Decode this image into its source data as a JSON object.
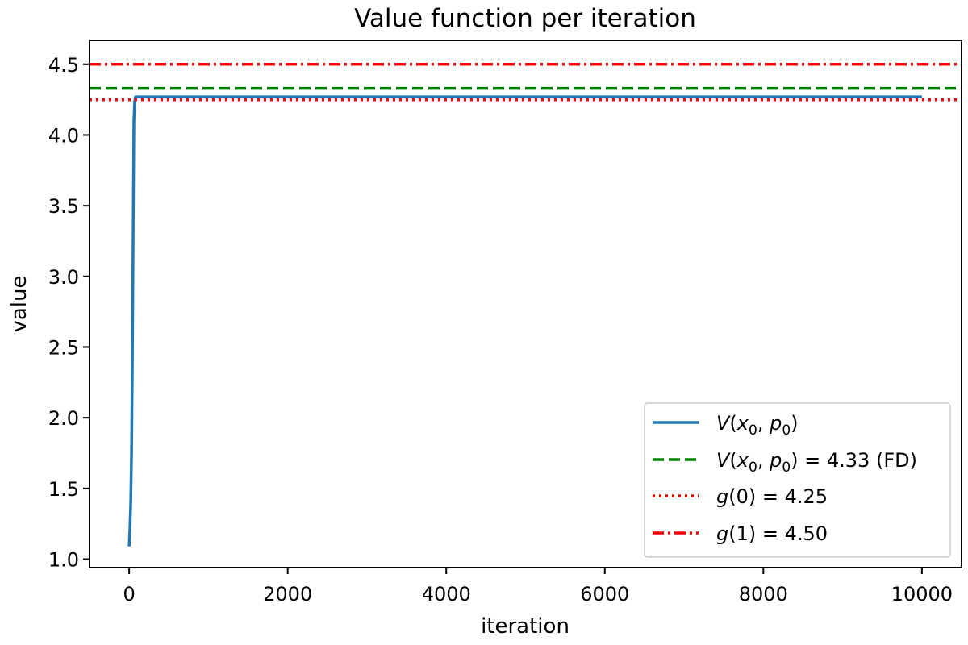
{
  "chart_data": {
    "type": "line",
    "title": "Value function per iteration",
    "xlabel": "iteration",
    "ylabel": "value",
    "xlim": [
      -500,
      10500
    ],
    "ylim": [
      0.94,
      4.67
    ],
    "xticks": [
      0,
      2000,
      4000,
      6000,
      8000,
      10000
    ],
    "xtick_labels": [
      "0",
      "2000",
      "4000",
      "6000",
      "8000",
      "10000"
    ],
    "yticks": [
      1.0,
      1.5,
      2.0,
      2.5,
      3.0,
      3.5,
      4.0,
      4.5
    ],
    "ytick_labels": [
      "1.0",
      "1.5",
      "2.0",
      "2.5",
      "3.0",
      "3.5",
      "4.0",
      "4.5"
    ],
    "grid": false,
    "legend_position": "bottom-right",
    "series": [
      {
        "name": "V(x0, p0)",
        "style": "solid",
        "color": "#1f77b4",
        "x": [
          0,
          5,
          10,
          20,
          30,
          40,
          50,
          60,
          70,
          80,
          100,
          200,
          1000,
          5000,
          10000
        ],
        "y": [
          1.09,
          1.15,
          1.22,
          1.4,
          1.75,
          2.4,
          3.3,
          4.1,
          4.24,
          4.27,
          4.27,
          4.27,
          4.27,
          4.27,
          4.27
        ]
      },
      {
        "name": "V(x0, p0) = 4.33 (FD)",
        "style": "dashed",
        "color": "#008000",
        "hline": 4.33
      },
      {
        "name": "g(0) = 4.25",
        "style": "dotted",
        "color": "#ff0000",
        "hline": 4.25
      },
      {
        "name": "g(1) = 4.50",
        "style": "dashdot",
        "color": "#ff0000",
        "hline": 4.5
      }
    ]
  }
}
